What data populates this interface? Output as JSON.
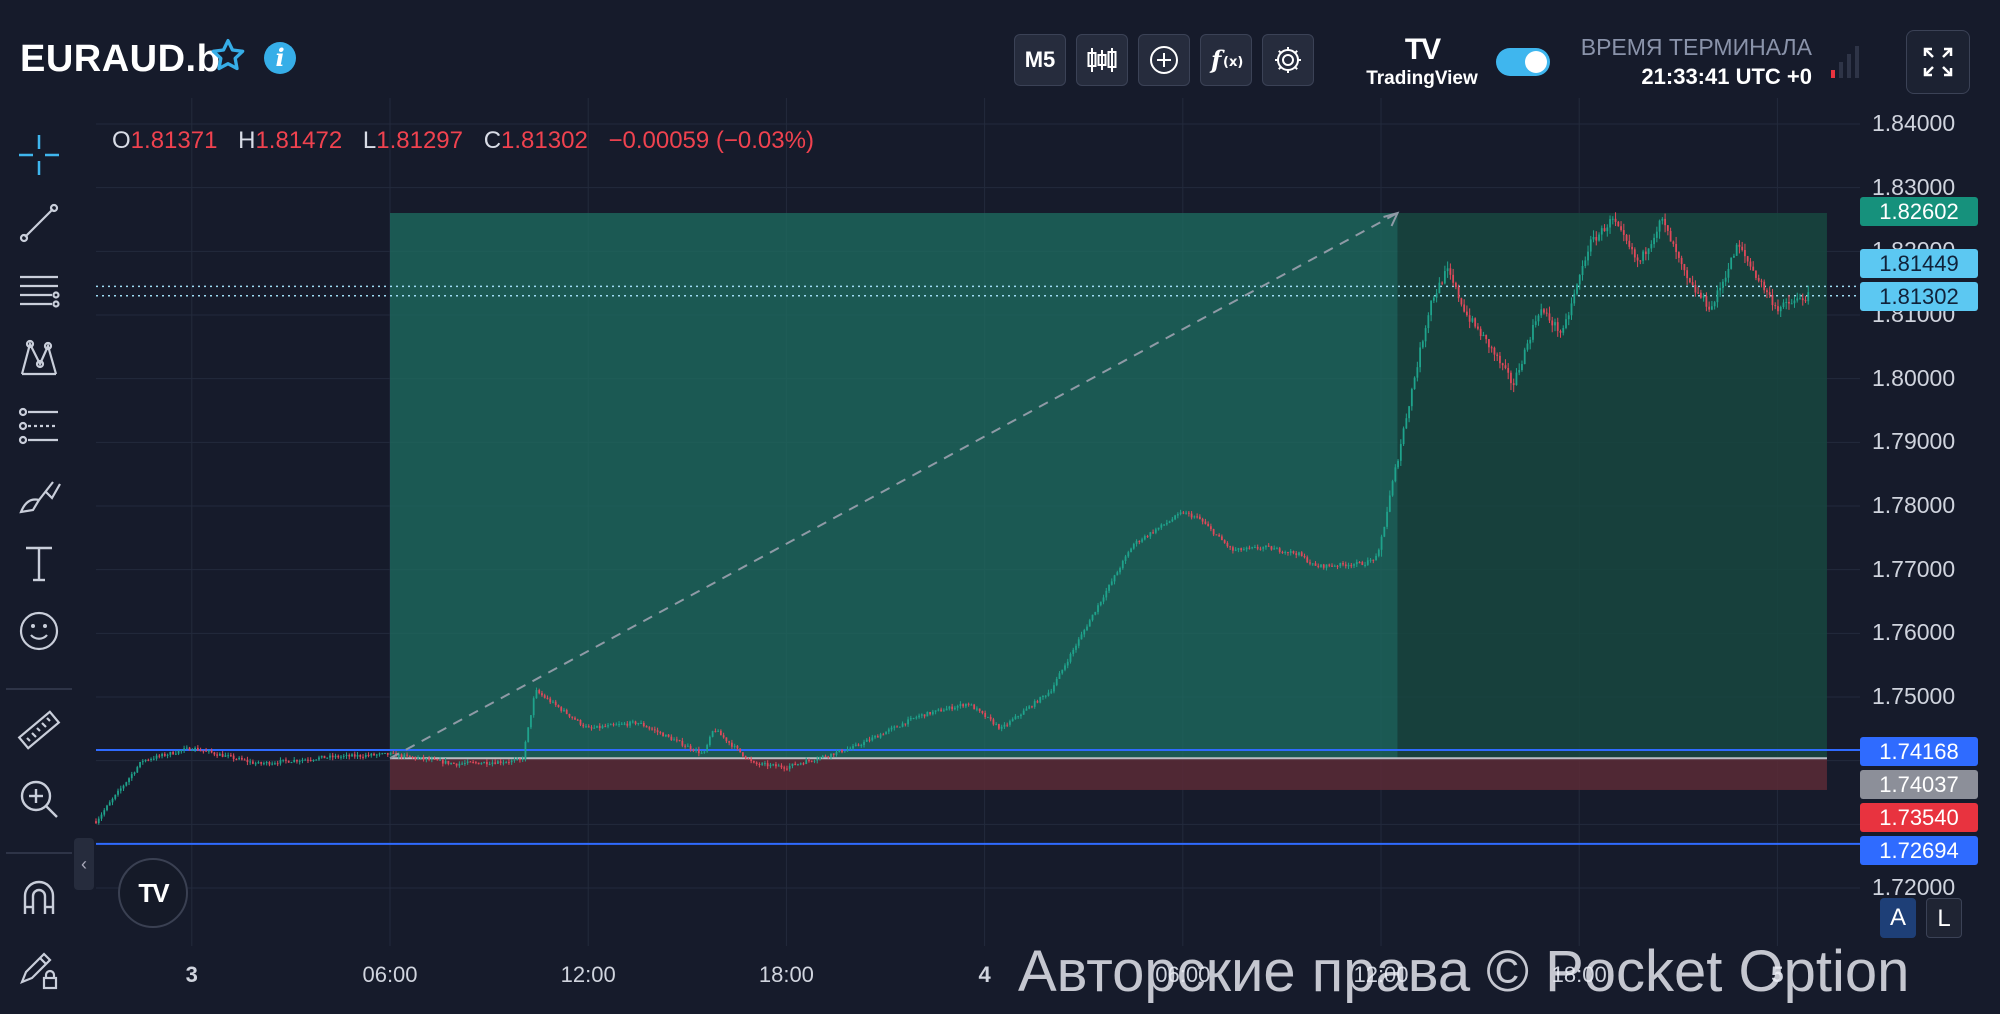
{
  "header": {
    "symbol": "EURAUD.b",
    "timeframe": "M5",
    "tv_brand": "TradingView",
    "terminal_label": "ВРЕМЯ ТЕРМИНАЛА",
    "terminal_time": "21:33:41 UTC +0"
  },
  "ohlc": {
    "o_key": "O",
    "o": "1.81371",
    "h_key": "H",
    "h": "1.81472",
    "l_key": "L",
    "l": "1.81297",
    "c_key": "C",
    "c": "1.81302",
    "change": "−0.00059 (−0.03%)"
  },
  "price_labels": {
    "target": "1.82602",
    "line1": "1.81449",
    "current": "1.81302",
    "level_upper": "1.74168",
    "entry": "1.74037",
    "stop": "1.73540",
    "level_lower": "1.72694"
  },
  "watermark": "Авторские права © Pocket Option",
  "scale_buttons": {
    "auto": "A",
    "log": "L"
  },
  "colors": {
    "background": "#161b2b",
    "profit_zone": "#1b5d55",
    "loss_zone": "#5a2a36",
    "up_candle": "#1fa38c",
    "down_candle": "#e0495a",
    "level_line": "#2f6bff",
    "accent": "#3fb6ee"
  },
  "chart_data": {
    "type": "candlestick",
    "symbol": "EURAUD.b",
    "ylim": [
      1.71,
      1.845
    ],
    "y_ticks": [
      "1.84000",
      "1.83000",
      "1.82000",
      "1.81000",
      "1.80000",
      "1.79000",
      "1.78000",
      "1.77000",
      "1.76000",
      "1.75000",
      "1.72000"
    ],
    "x_ticks": [
      "3",
      "06:00",
      "12:00",
      "18:00",
      "4",
      "06:00",
      "12:00",
      "18:00",
      "5"
    ],
    "x_tick_hours": [
      0,
      6,
      12,
      18,
      24,
      30,
      36,
      42,
      48
    ],
    "x_range_hours": [
      -2.9,
      50.5
    ],
    "price_path": [
      {
        "t": -2.9,
        "p": 1.7305
      },
      {
        "t": -1.5,
        "p": 1.74
      },
      {
        "t": 0.0,
        "p": 1.742
      },
      {
        "t": 2.0,
        "p": 1.7395
      },
      {
        "t": 4.0,
        "p": 1.7405
      },
      {
        "t": 6.0,
        "p": 1.741
      },
      {
        "t": 8.0,
        "p": 1.7395
      },
      {
        "t": 10.0,
        "p": 1.74
      },
      {
        "t": 10.4,
        "p": 1.751
      },
      {
        "t": 12.0,
        "p": 1.745
      },
      {
        "t": 13.5,
        "p": 1.746
      },
      {
        "t": 15.5,
        "p": 1.741
      },
      {
        "t": 15.8,
        "p": 1.745
      },
      {
        "t": 17.0,
        "p": 1.7395
      },
      {
        "t": 18.0,
        "p": 1.739
      },
      {
        "t": 20.0,
        "p": 1.742
      },
      {
        "t": 22.0,
        "p": 1.747
      },
      {
        "t": 23.5,
        "p": 1.749
      },
      {
        "t": 24.5,
        "p": 1.745
      },
      {
        "t": 26.0,
        "p": 1.751
      },
      {
        "t": 27.5,
        "p": 1.765
      },
      {
        "t": 28.5,
        "p": 1.774
      },
      {
        "t": 30.0,
        "p": 1.779
      },
      {
        "t": 30.5,
        "p": 1.778
      },
      {
        "t": 31.5,
        "p": 1.773
      },
      {
        "t": 32.5,
        "p": 1.7735
      },
      {
        "t": 33.5,
        "p": 1.7725
      },
      {
        "t": 34.0,
        "p": 1.7705
      },
      {
        "t": 35.5,
        "p": 1.771
      },
      {
        "t": 35.9,
        "p": 1.772
      },
      {
        "t": 36.8,
        "p": 1.795
      },
      {
        "t": 37.5,
        "p": 1.812
      },
      {
        "t": 38.0,
        "p": 1.817
      },
      {
        "t": 38.6,
        "p": 1.81
      },
      {
        "t": 39.3,
        "p": 1.805
      },
      {
        "t": 40.0,
        "p": 1.799
      },
      {
        "t": 40.8,
        "p": 1.811
      },
      {
        "t": 41.5,
        "p": 1.807
      },
      {
        "t": 42.3,
        "p": 1.821
      },
      {
        "t": 43.0,
        "p": 1.825
      },
      {
        "t": 43.8,
        "p": 1.818
      },
      {
        "t": 44.5,
        "p": 1.825
      },
      {
        "t": 45.3,
        "p": 1.815
      },
      {
        "t": 46.0,
        "p": 1.811
      },
      {
        "t": 46.8,
        "p": 1.821
      },
      {
        "t": 47.5,
        "p": 1.815
      },
      {
        "t": 48.0,
        "p": 1.811
      },
      {
        "t": 48.7,
        "p": 1.8125
      },
      {
        "t": 49.0,
        "p": 1.813
      }
    ],
    "long_position": {
      "start_hours": 6.0,
      "end_hours": 49.5,
      "entry": 1.74037,
      "target": 1.82602,
      "stop": 1.7354,
      "fill_end_hours": 36.5
    },
    "horizontal_levels": [
      1.74168,
      1.72694
    ],
    "dotted_levels": [
      1.81449,
      1.81302
    ],
    "projection_line": {
      "from_hours": 6.0,
      "from": 1.74037,
      "to_hours": 36.5,
      "to": 1.82602
    }
  }
}
